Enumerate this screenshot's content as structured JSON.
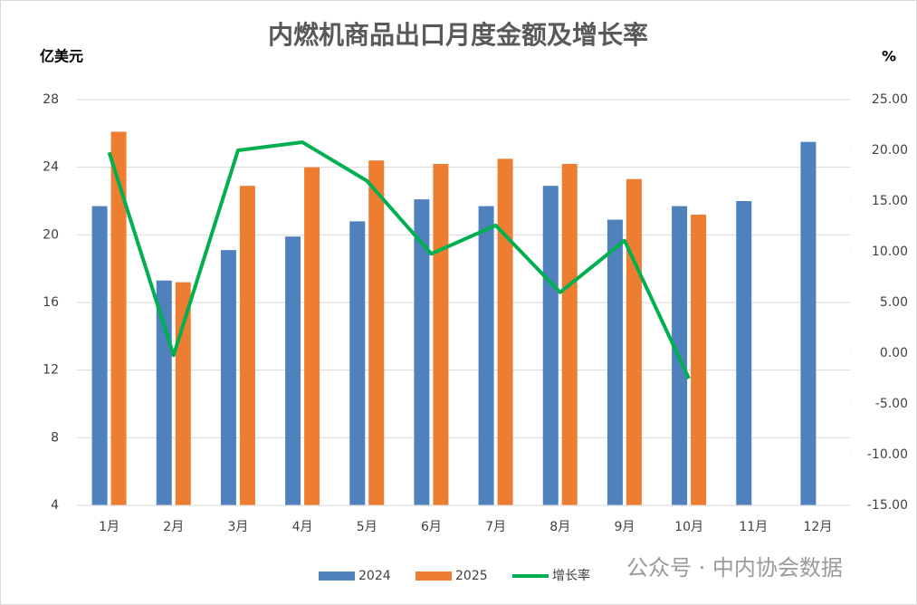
{
  "chart_data": {
    "type": "bar-line",
    "title": "内燃机商品出口月度金额及增长率",
    "y_label": "亿美元",
    "y2_label": "%",
    "categories": [
      "1月",
      "2月",
      "3月",
      "4月",
      "5月",
      "6月",
      "7月",
      "8月",
      "9月",
      "10月",
      "11月",
      "12月"
    ],
    "series": [
      {
        "name": "2024",
        "type": "bar",
        "color": "#4f81bd",
        "values": [
          21.7,
          17.3,
          19.1,
          19.9,
          20.8,
          22.1,
          21.7,
          22.9,
          20.9,
          21.7,
          22.0,
          25.5
        ]
      },
      {
        "name": "2025",
        "type": "bar",
        "color": "#ed7d31",
        "values": [
          26.1,
          17.2,
          22.9,
          24.0,
          24.4,
          24.2,
          24.5,
          24.2,
          23.3,
          21.2,
          null,
          null
        ]
      },
      {
        "name": "增长率",
        "type": "line",
        "axis": "y2",
        "color": "#00b050",
        "values": [
          19.8,
          -0.2,
          20.0,
          20.8,
          17.0,
          9.8,
          12.6,
          6.0,
          11.1,
          -2.5,
          null,
          null
        ]
      }
    ],
    "ylim": [
      4,
      28
    ],
    "yticks": [
      4,
      8,
      12,
      16,
      20,
      24,
      28
    ],
    "y2lim": [
      -15,
      25
    ],
    "y2ticks": [
      {
        "value": -15,
        "label": "-15.00"
      },
      {
        "value": -10,
        "label": "-10.00"
      },
      {
        "value": -5,
        "label": "-5.00"
      },
      {
        "value": 0,
        "label": "0.00"
      },
      {
        "value": 5,
        "label": "5.00"
      },
      {
        "value": 10,
        "label": "10.00"
      },
      {
        "value": 15,
        "label": "15.00"
      },
      {
        "value": 20,
        "label": "20.00"
      },
      {
        "value": 25,
        "label": "25.00"
      }
    ],
    "grid": true,
    "legend": "bottom",
    "watermark": "公众号 · 中内协会数据"
  }
}
